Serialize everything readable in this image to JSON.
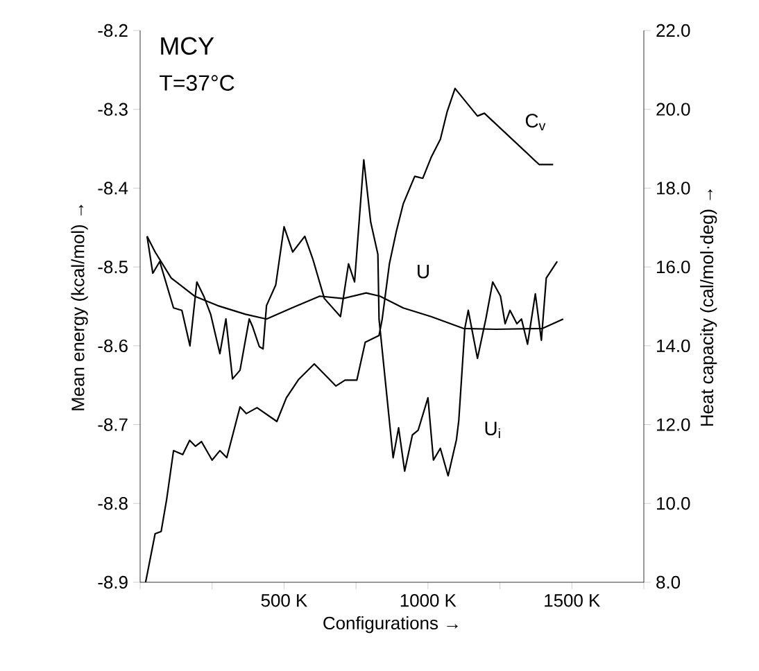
{
  "chart_data": {
    "type": "line",
    "title": "MCY",
    "subtitle": "T=37°C",
    "xlabel": "Configurations →",
    "ylabel": "Mean energy  (kcal/mol) →",
    "y2label": "Heat capacity  (cal/mol·deg) →",
    "xlim": [
      0,
      1750000
    ],
    "xticks": [
      {
        "value": 0,
        "label": null
      },
      {
        "value": 250000,
        "label": null
      },
      {
        "value": 500000,
        "label": "500 K"
      },
      {
        "value": 750000,
        "label": null
      },
      {
        "value": 1000000,
        "label": "1000 K"
      },
      {
        "value": 1250000,
        "label": null
      },
      {
        "value": 1500000,
        "label": "1500 K"
      },
      {
        "value": 1750000,
        "label": null
      }
    ],
    "ylim": [
      -8.9,
      -8.2
    ],
    "yticks": [
      -8.9,
      -8.8,
      -8.7,
      -8.6,
      -8.5,
      -8.4,
      -8.3,
      -8.2
    ],
    "y2lim": [
      8,
      22
    ],
    "y2ticks": [
      {
        "value": 8,
        "label": "8.0"
      },
      {
        "value": 10,
        "label": "10.0"
      },
      {
        "value": 12,
        "label": "12.0"
      },
      {
        "value": 14,
        "label": "14.0"
      },
      {
        "value": 16,
        "label": "16.0"
      },
      {
        "value": 18,
        "label": "18.0"
      },
      {
        "value": 20,
        "label": "20.0"
      },
      {
        "value": 22,
        "label": "22.0"
      }
    ],
    "grid": false,
    "marker": "none",
    "line_style": "solid",
    "series": [
      {
        "name": "U",
        "color": "#000000",
        "x": [
          24000,
          52000,
          108000,
          189000,
          269000,
          366000,
          439000,
          527000,
          624000,
          705000,
          785000,
          833000,
          914000,
          1011000,
          1123000,
          1237000,
          1398000,
          1470000
        ],
        "values": [
          -8.461,
          -8.481,
          -8.514,
          -8.537,
          -8.549,
          -8.56,
          -8.566,
          -8.552,
          -8.537,
          -8.54,
          -8.533,
          -8.537,
          -8.552,
          -8.563,
          -8.578,
          -8.579,
          -8.578,
          -8.566
        ]
      },
      {
        "name": "U$_{i}$",
        "color": "#000000",
        "x": [
          24000,
          44000,
          68000,
          116000,
          145000,
          173000,
          197000,
          221000,
          245000,
          277000,
          298000,
          321000,
          347000,
          379000,
          390000,
          414000,
          427000,
          439000,
          471000,
          500000,
          530000,
          572000,
          600000,
          640000,
          696000,
          724000,
          745000,
          777000,
          801000,
          826000,
          830000,
          879000,
          898000,
          919000,
          946000,
          966000,
          1000000,
          1019000,
          1043000,
          1070000,
          1099000,
          1107000,
          1128000,
          1140000,
          1172000,
          1201000,
          1225000,
          1252000,
          1268000,
          1285000,
          1309000,
          1325000,
          1346000,
          1373000,
          1394000,
          1411000,
          1449000
        ],
        "values": [
          -8.461,
          -8.508,
          -8.493,
          -8.552,
          -8.555,
          -8.6,
          -8.519,
          -8.537,
          -8.56,
          -8.61,
          -8.566,
          -8.642,
          -8.631,
          -8.566,
          -8.575,
          -8.601,
          -8.604,
          -8.549,
          -8.523,
          -8.449,
          -8.481,
          -8.461,
          -8.49,
          -8.54,
          -8.563,
          -8.496,
          -8.519,
          -8.364,
          -8.443,
          -8.484,
          -8.566,
          -8.742,
          -8.704,
          -8.759,
          -8.713,
          -8.707,
          -8.666,
          -8.745,
          -8.73,
          -8.765,
          -8.719,
          -8.695,
          -8.578,
          -8.555,
          -8.616,
          -8.566,
          -8.519,
          -8.537,
          -8.572,
          -8.555,
          -8.572,
          -8.566,
          -8.598,
          -8.534,
          -8.593,
          -8.514,
          -8.493
        ]
      },
      {
        "name": "C$_{v}$",
        "color": "#000000",
        "axis": "y2",
        "x": [
          19000,
          52000,
          73000,
          92000,
          116000,
          148000,
          172000,
          192000,
          213000,
          250000,
          277000,
          301000,
          347000,
          369000,
          406000,
          475000,
          508000,
          551000,
          605000,
          680000,
          712000,
          753000,
          782000,
          830000,
          841000,
          866000,
          890000,
          914000,
          954000,
          982000,
          1011000,
          1043000,
          1067000,
          1094000,
          1172000,
          1196000,
          1386000,
          1435000
        ],
        "values": [
          8.0,
          9.23,
          9.29,
          10.1,
          11.34,
          11.24,
          11.6,
          11.45,
          11.57,
          11.1,
          11.34,
          11.16,
          12.45,
          12.28,
          12.43,
          12.08,
          12.68,
          13.15,
          13.54,
          12.98,
          13.13,
          13.13,
          14.09,
          14.26,
          14.68,
          16.08,
          16.9,
          17.6,
          18.3,
          18.25,
          18.78,
          19.24,
          19.95,
          20.53,
          19.83,
          19.9,
          18.6,
          18.6
        ]
      }
    ]
  }
}
